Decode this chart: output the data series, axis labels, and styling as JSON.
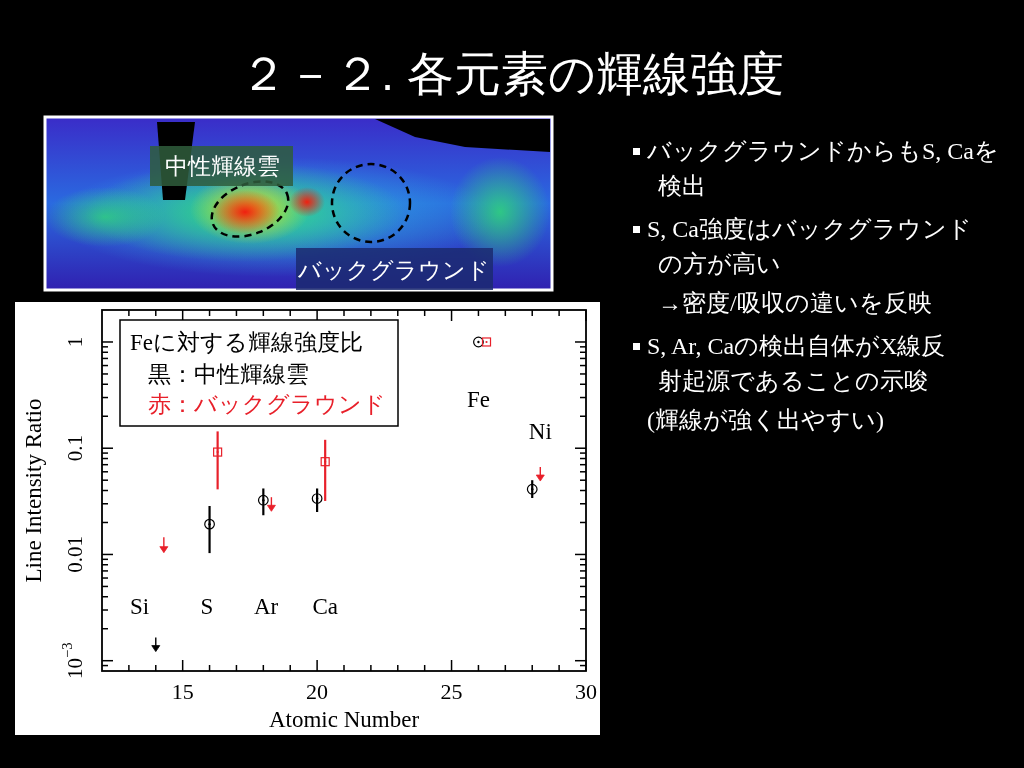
{
  "chart_data": [
    {
      "type": "other",
      "title": "２－２. 各元素の輝線強度",
      "annotations": [
        "中性輝線雲",
        "バックグラウンド"
      ]
    },
    {
      "type": "other",
      "annotations": [
        "バックグラウンドからもS, Caを検出",
        "S, Ca強度はバックグラウンドの方が高い",
        "→密度/吸収の違いを反映",
        "S, Ar, Caの検出自体がX線反射起源であることの示唆",
        "(輝線が強く出やすい)"
      ]
    },
    {
      "type": "scatter",
      "xlabel": "Atomic Number",
      "ylabel": "Line Intensity Ratio",
      "legend_title": "Feに対する輝線強度比",
      "legend": "top left",
      "log": true,
      "xlim": [
        12,
        30
      ],
      "xticks": [
        {
          "value": 13,
          "label": null
        },
        {
          "value": 14,
          "label": null
        },
        15,
        {
          "value": 16,
          "label": null
        },
        {
          "value": 17,
          "label": null
        },
        {
          "value": 18,
          "label": null
        },
        {
          "value": 19,
          "label": null
        },
        20,
        {
          "value": 21,
          "label": null
        },
        {
          "value": 22,
          "label": null
        },
        {
          "value": 23,
          "label": null
        },
        {
          "value": 24,
          "label": null
        },
        25,
        {
          "value": 26,
          "label": null
        },
        {
          "value": 27,
          "label": null
        },
        {
          "value": 28,
          "label": null
        },
        {
          "value": 29,
          "label": null
        },
        30
      ],
      "ylim": [
        0.0008,
        2
      ],
      "yticks": [
        {
          "value": 0.0009,
          "label": null
        },
        {
          "value": 0.001,
          "label": "10$^{−3}$"
        },
        {
          "value": 0.002,
          "label": null
        },
        {
          "value": 0.003,
          "label": null
        },
        {
          "value": 0.004,
          "label": null
        },
        {
          "value": 0.005,
          "label": null
        },
        {
          "value": 0.006,
          "label": null
        },
        {
          "value": 0.007,
          "label": null
        },
        {
          "value": 0.008,
          "label": null
        },
        {
          "value": 0.009,
          "label": null
        },
        0.01,
        {
          "value": 0.02,
          "label": null
        },
        {
          "value": 0.03,
          "label": null
        },
        {
          "value": 0.04,
          "label": null
        },
        {
          "value": 0.05,
          "label": null
        },
        {
          "value": 0.06,
          "label": null
        },
        {
          "value": 0.07,
          "label": null
        },
        {
          "value": 0.08,
          "label": null
        },
        {
          "value": 0.09,
          "label": null
        },
        0.1,
        {
          "value": 0.2,
          "label": null
        },
        {
          "value": 0.3,
          "label": null
        },
        {
          "value": 0.4,
          "label": null
        },
        {
          "value": 0.5,
          "label": null
        },
        {
          "value": 0.6,
          "label": null
        },
        {
          "value": 0.7,
          "label": null
        },
        {
          "value": 0.8,
          "label": null
        },
        {
          "value": 0.9,
          "label": null
        },
        1
      ],
      "series": [
        {
          "name": "黒：中性輝線雲",
          "color": "#000000",
          "marker": "circle",
          "x": [
            16,
            18,
            20,
            26,
            28
          ],
          "values": [
            0.0193,
            0.0324,
            0.0336,
            1,
            0.0411
          ],
          "errors": [
            [
              0.0103,
              0.0286
            ],
            [
              0.0234,
              0.0418
            ],
            [
              0.0251,
              0.0418
            ],
            null,
            [
              0.034,
              0.05
            ]
          ]
        },
        {
          "name": "赤：バックグラウンド",
          "color": "#e8202a",
          "marker": "square",
          "x": [
            16.3,
            20.3,
            26.3
          ],
          "values": [
            0.092,
            0.0747,
            1
          ],
          "errors": [
            [
              0.041,
              0.144
            ],
            [
              0.0319,
              0.12
            ],
            null
          ]
        },
        {
          "color": "#000000",
          "marker": "triangle",
          "x": [
            14
          ],
          "values": [
            0.0013
          ],
          "errors": [
            [
              0.0013,
              0.00165
            ]
          ]
        },
        {
          "color": "#e8202a",
          "marker": "triangle",
          "x": [
            14.3,
            18.3,
            28.3
          ],
          "values": [
            0.0111,
            0.0272,
            0.0524
          ],
          "errors": [
            [
              0.0111,
              0.0145
            ],
            [
              0.0272,
              0.0346
            ],
            [
              0.0524,
              0.0665
            ]
          ]
        }
      ],
      "annotations": [
        "Si",
        "S",
        "Ar",
        "Ca",
        "Fe",
        "Ni"
      ]
    }
  ]
}
